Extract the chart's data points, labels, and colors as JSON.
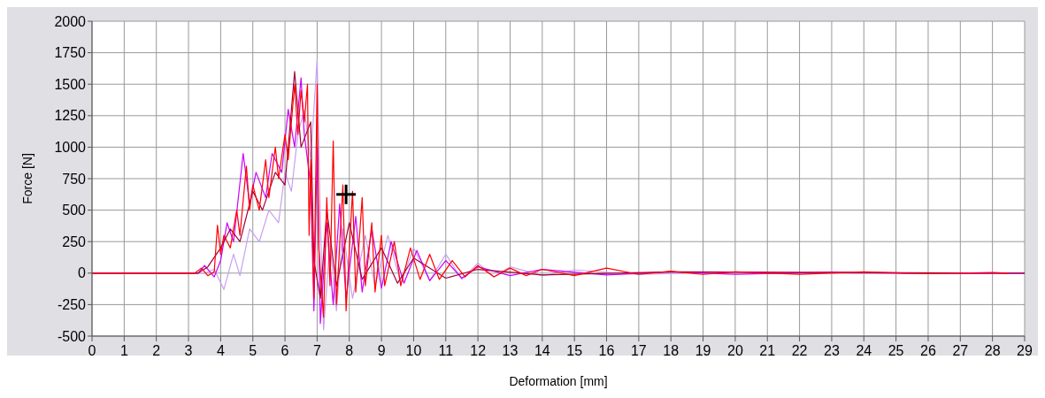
{
  "chart_data": {
    "type": "line",
    "xlabel": "Deformation [mm]",
    "ylabel": "Force [N]",
    "xlim": [
      0,
      29
    ],
    "ylim": [
      -500,
      2000
    ],
    "xticks": [
      0,
      1,
      2,
      3,
      4,
      5,
      6,
      7,
      8,
      9,
      10,
      11,
      12,
      13,
      14,
      15,
      16,
      17,
      18,
      19,
      20,
      21,
      22,
      23,
      24,
      25,
      26,
      27,
      28,
      29
    ],
    "yticks": [
      -500,
      -250,
      0,
      250,
      500,
      750,
      1000,
      1250,
      1500,
      1750,
      2000
    ],
    "grid": true,
    "marker": "none",
    "line_style": "solid",
    "series": [
      {
        "color": "#c8a0f0",
        "x": [
          0,
          3.5,
          3.8,
          4.1,
          4.4,
          4.6,
          4.9,
          5.2,
          5.5,
          5.8,
          6.0,
          6.2,
          6.4,
          6.6,
          6.8,
          7.0,
          7.1,
          7.2,
          7.4,
          7.6,
          7.8,
          8.1,
          8.5,
          8.8,
          9.2,
          9.6,
          10.0,
          10.5,
          11,
          11.5,
          12,
          12.5,
          13,
          14,
          15,
          17,
          20,
          24,
          29
        ],
        "values": [
          0,
          0,
          30,
          -130,
          150,
          -20,
          350,
          250,
          500,
          400,
          800,
          650,
          1100,
          1300,
          900,
          1700,
          400,
          -450,
          250,
          -300,
          350,
          -200,
          300,
          -100,
          300,
          -80,
          200,
          -60,
          150,
          -50,
          80,
          -30,
          50,
          -20,
          25,
          -10,
          10,
          -5,
          0
        ]
      },
      {
        "color": "#cc00ff",
        "x": [
          0,
          3.3,
          3.5,
          3.8,
          4.0,
          4.2,
          4.4,
          4.7,
          4.9,
          5.1,
          5.4,
          5.6,
          5.9,
          6.1,
          6.3,
          6.5,
          6.6,
          6.8,
          6.9,
          7.0,
          7.1,
          7.3,
          7.5,
          7.7,
          7.9,
          8.2,
          8.4,
          8.7,
          9.0,
          9.3,
          9.7,
          10.1,
          10.5,
          11,
          11.5,
          12,
          13,
          14,
          16,
          18,
          20,
          23,
          26,
          29
        ],
        "values": [
          0,
          0,
          60,
          -30,
          100,
          400,
          250,
          950,
          550,
          800,
          600,
          950,
          800,
          1300,
          1000,
          1550,
          1100,
          700,
          -300,
          1000,
          -400,
          400,
          -250,
          550,
          -200,
          450,
          -150,
          350,
          -120,
          250,
          -80,
          180,
          -60,
          100,
          -40,
          50,
          -20,
          30,
          -15,
          10,
          -10,
          8,
          -5,
          0
        ]
      },
      {
        "color": "#a0003c",
        "x": [
          0,
          3.3,
          3.6,
          4.0,
          4.3,
          4.6,
          5.0,
          5.3,
          5.7,
          6.0,
          6.3,
          6.5,
          6.8,
          6.9,
          7.1,
          7.3,
          7.6,
          8.0,
          8.4,
          9,
          9.5,
          10,
          11,
          12,
          14,
          18,
          29
        ],
        "values": [
          0,
          0,
          50,
          200,
          350,
          250,
          650,
          500,
          800,
          700,
          1600,
          1000,
          1200,
          100,
          -200,
          500,
          -100,
          400,
          -50,
          200,
          -80,
          120,
          -40,
          30,
          -15,
          10,
          0
        ]
      },
      {
        "color": "#ff0000",
        "x": [
          0,
          3.2,
          3.4,
          3.6,
          3.8,
          3.9,
          4.0,
          4.1,
          4.3,
          4.5,
          4.6,
          4.8,
          4.9,
          5.0,
          5.2,
          5.4,
          5.5,
          5.7,
          5.8,
          6.0,
          6.1,
          6.3,
          6.4,
          6.5,
          6.6,
          6.7,
          6.75,
          6.8,
          6.9,
          7.0,
          7.05,
          7.2,
          7.3,
          7.4,
          7.5,
          7.6,
          7.8,
          7.9,
          8.1,
          8.2,
          8.4,
          8.5,
          8.7,
          8.8,
          9.0,
          9.1,
          9.4,
          9.6,
          9.9,
          10.2,
          10.5,
          10.8,
          11.2,
          11.6,
          12,
          12.5,
          13,
          13.5,
          14,
          15,
          16,
          17,
          18,
          19,
          20,
          22,
          24,
          26,
          28,
          28.5
        ],
        "values": [
          0,
          0,
          40,
          -20,
          10,
          380,
          150,
          300,
          200,
          500,
          300,
          850,
          500,
          700,
          500,
          900,
          600,
          1000,
          750,
          1100,
          900,
          1500,
          1100,
          1450,
          1200,
          1500,
          300,
          900,
          -200,
          1500,
          200,
          -350,
          600,
          -100,
          1050,
          -250,
          700,
          -300,
          650,
          -150,
          600,
          -100,
          400,
          -150,
          300,
          -100,
          250,
          -100,
          200,
          -50,
          150,
          -50,
          100,
          -30,
          60,
          -30,
          40,
          -20,
          30,
          -20,
          40,
          -10,
          15,
          -10,
          10,
          -10,
          10,
          -5,
          5,
          0
        ]
      }
    ]
  }
}
